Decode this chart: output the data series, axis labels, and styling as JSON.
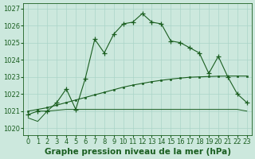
{
  "hours": [
    0,
    1,
    2,
    3,
    4,
    5,
    6,
    7,
    8,
    9,
    10,
    11,
    12,
    13,
    14,
    15,
    16,
    17,
    18,
    19,
    20,
    21,
    22,
    23
  ],
  "pressure_main": [
    1020.8,
    1021.0,
    1021.0,
    1021.5,
    1022.3,
    1021.1,
    1022.9,
    1025.2,
    1024.4,
    1025.5,
    1026.1,
    1026.2,
    1026.7,
    1026.2,
    1026.1,
    1025.1,
    1025.0,
    1024.7,
    1024.4,
    1023.2,
    1024.2,
    1023.0,
    1022.0,
    1021.5
  ],
  "pressure_rising": [
    1021.0,
    1021.1,
    1021.2,
    1021.35,
    1021.5,
    1021.65,
    1021.8,
    1021.95,
    1022.1,
    1022.25,
    1022.4,
    1022.52,
    1022.62,
    1022.72,
    1022.8,
    1022.87,
    1022.93,
    1022.98,
    1023.0,
    1023.02,
    1023.04,
    1023.05,
    1023.05,
    1023.05
  ],
  "pressure_flat": [
    1020.6,
    1020.4,
    1021.0,
    1021.05,
    1021.1,
    1021.1,
    1021.1,
    1021.1,
    1021.1,
    1021.1,
    1021.1,
    1021.1,
    1021.1,
    1021.1,
    1021.1,
    1021.1,
    1021.1,
    1021.1,
    1021.1,
    1021.1,
    1021.1,
    1021.1,
    1021.1,
    1021.0
  ],
  "bg_color": "#cce8dd",
  "grid_color": "#aad4c8",
  "line_color": "#1a5e20",
  "title": "Graphe pression niveau de la mer (hPa)",
  "ylim": [
    1019.6,
    1027.3
  ],
  "yticks": [
    1020,
    1021,
    1022,
    1023,
    1024,
    1025,
    1026,
    1027
  ],
  "tick_fontsize": 6,
  "title_fontsize": 7.5
}
